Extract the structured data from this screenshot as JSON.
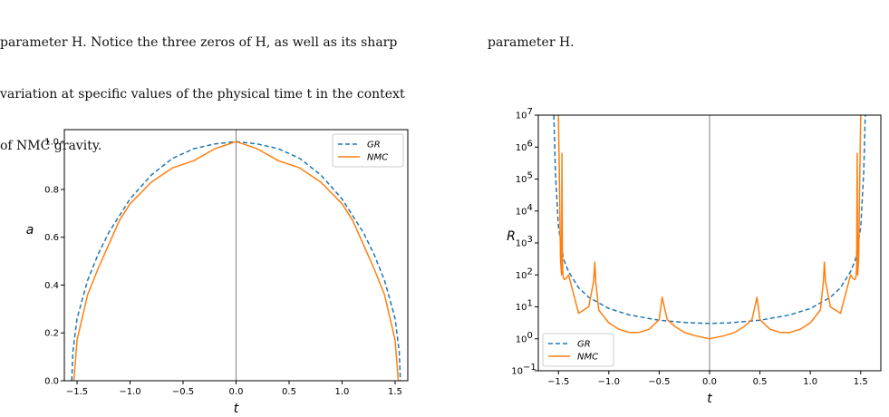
{
  "caption_left": {
    "lines": [
      "parameter H. Notice the three zeros of H, as well as its sharp",
      "variation at specific values of the physical time t in the context",
      "of NMC gravity."
    ]
  },
  "caption_right": {
    "lines": [
      "parameter H."
    ]
  },
  "colors": {
    "gr": "#1f77b4",
    "nmc": "#ff7f0e",
    "vline": "#808080"
  },
  "chart_data": [
    {
      "type": "line",
      "xlabel": "t",
      "ylabel": "a",
      "xlim": [
        -1.62,
        1.62
      ],
      "ylim": [
        0,
        1.05
      ],
      "xticks": [
        -1.5,
        -1.0,
        -0.5,
        0.0,
        0.5,
        1.0,
        1.5
      ],
      "xtick_labels": [
        "−1.5",
        "−1.0",
        "−0.5",
        "0.0",
        "0.5",
        "1.0",
        "1.5"
      ],
      "yticks": [
        0.0,
        0.2,
        0.4,
        0.6,
        0.8,
        1.0
      ],
      "ytick_labels": [
        "0.0",
        "0.2",
        "0.4",
        "0.6",
        "0.8",
        "1.0"
      ],
      "legend": {
        "position": "top-right",
        "entries": [
          "GR",
          "NMC"
        ]
      },
      "vline_x": 0,
      "series": [
        {
          "name": "GR",
          "style": "dashed",
          "x": [
            -1.55,
            -1.54,
            -1.5,
            -1.4,
            -1.3,
            -1.2,
            -1.0,
            -0.8,
            -0.6,
            -0.4,
            -0.2,
            0.0,
            0.2,
            0.4,
            0.6,
            0.8,
            1.0,
            1.2,
            1.3,
            1.4,
            1.5,
            1.54,
            1.55
          ],
          "y": [
            0.0,
            0.12,
            0.26,
            0.42,
            0.53,
            0.62,
            0.76,
            0.86,
            0.93,
            0.97,
            0.99,
            1.0,
            0.99,
            0.97,
            0.93,
            0.86,
            0.76,
            0.62,
            0.53,
            0.42,
            0.26,
            0.12,
            0.0
          ]
        },
        {
          "name": "NMC",
          "style": "solid",
          "x": [
            -1.53,
            -1.5,
            -1.4,
            -1.3,
            -1.2,
            -1.1,
            -1.0,
            -0.8,
            -0.6,
            -0.4,
            -0.2,
            0.0,
            0.2,
            0.4,
            0.6,
            0.8,
            1.0,
            1.1,
            1.2,
            1.3,
            1.4,
            1.5,
            1.53
          ],
          "y": [
            0.0,
            0.17,
            0.36,
            0.47,
            0.57,
            0.67,
            0.74,
            0.83,
            0.89,
            0.92,
            0.97,
            1.0,
            0.97,
            0.92,
            0.89,
            0.83,
            0.74,
            0.67,
            0.57,
            0.47,
            0.36,
            0.17,
            0.0
          ]
        }
      ]
    },
    {
      "type": "line",
      "xlabel": "t",
      "ylabel": "R",
      "yscale": "log",
      "xlim": [
        -1.7,
        1.7
      ],
      "ylim": [
        -1,
        7
      ],
      "xticks": [
        -1.5,
        -1.0,
        -0.5,
        0.0,
        0.5,
        1.0,
        1.5
      ],
      "xtick_labels": [
        "−1.5",
        "−1.0",
        "−0.5",
        "0.0",
        "0.5",
        "1.0",
        "1.5"
      ],
      "yticks": [
        -1,
        0,
        1,
        2,
        3,
        4,
        5,
        6,
        7
      ],
      "ytick_labels": [
        "10",
        "10",
        "10",
        "10",
        "10",
        "10",
        "10",
        "10",
        "10"
      ],
      "ytick_exponents": [
        "−1",
        "0",
        "1",
        "2",
        "3",
        "4",
        "5",
        "6",
        "7"
      ],
      "legend": {
        "position": "lower-left",
        "entries": [
          "GR",
          "NMC"
        ]
      },
      "vline_x": 0,
      "series": [
        {
          "name": "GR",
          "style": "dashed",
          "x": [
            -1.545,
            -1.53,
            -1.5,
            -1.45,
            -1.4,
            -1.3,
            -1.2,
            -1.0,
            -0.8,
            -0.5,
            -0.2,
            0.0,
            0.2,
            0.5,
            0.8,
            1.0,
            1.2,
            1.3,
            1.4,
            1.45,
            1.5,
            1.53,
            1.545
          ],
          "y": [
            7,
            5.2,
            3.5,
            2.5,
            2.1,
            1.6,
            1.3,
            0.95,
            0.75,
            0.58,
            0.5,
            0.48,
            0.5,
            0.58,
            0.75,
            0.95,
            1.3,
            1.6,
            2.1,
            2.5,
            3.5,
            5.2,
            7
          ]
        },
        {
          "name": "NMC",
          "style": "solid",
          "x": [
            -1.5,
            -1.49,
            -1.48,
            -1.47,
            -1.465,
            -1.46,
            -1.455,
            -1.45,
            -1.44,
            -1.42,
            -1.4,
            -1.3,
            -1.2,
            -1.15,
            -1.14,
            -1.13,
            -1.1,
            -1.0,
            -0.9,
            -0.8,
            -0.7,
            -0.6,
            -0.5,
            -0.47,
            -0.45,
            -0.42,
            -0.35,
            -0.25,
            -0.15,
            0.0,
            0.15,
            0.25,
            0.35,
            0.42,
            0.45,
            0.47,
            0.5,
            0.6,
            0.7,
            0.8,
            0.9,
            1.0,
            1.1,
            1.13,
            1.14,
            1.15,
            1.2,
            1.3,
            1.4,
            1.42,
            1.44,
            1.45,
            1.455,
            1.46,
            1.465,
            1.47,
            1.48,
            1.49,
            1.5
          ],
          "y": [
            7,
            5.0,
            2.5,
            2.0,
            5.8,
            2.3,
            2.0,
            1.9,
            1.85,
            1.9,
            2.0,
            0.8,
            1.0,
            1.8,
            2.4,
            1.8,
            0.9,
            0.5,
            0.3,
            0.2,
            0.2,
            0.3,
            0.6,
            1.3,
            1.0,
            0.6,
            0.4,
            0.2,
            0.1,
            0.0,
            0.1,
            0.2,
            0.4,
            0.6,
            1.0,
            1.3,
            0.6,
            0.3,
            0.2,
            0.2,
            0.3,
            0.5,
            0.9,
            1.8,
            2.4,
            1.8,
            1.0,
            0.8,
            2.0,
            1.9,
            1.85,
            1.9,
            2.0,
            2.3,
            5.8,
            2.0,
            2.5,
            5.0,
            7
          ]
        }
      ]
    }
  ]
}
